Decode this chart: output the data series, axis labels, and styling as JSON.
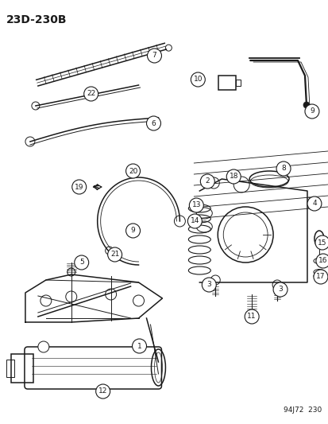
{
  "title": "23D-230B",
  "footer": "94J72  230",
  "bg_color": "#ffffff",
  "fig_width": 4.14,
  "fig_height": 5.33,
  "dpi": 100,
  "title_fontsize": 10,
  "label_fontsize": 7,
  "color": "#1a1a1a"
}
